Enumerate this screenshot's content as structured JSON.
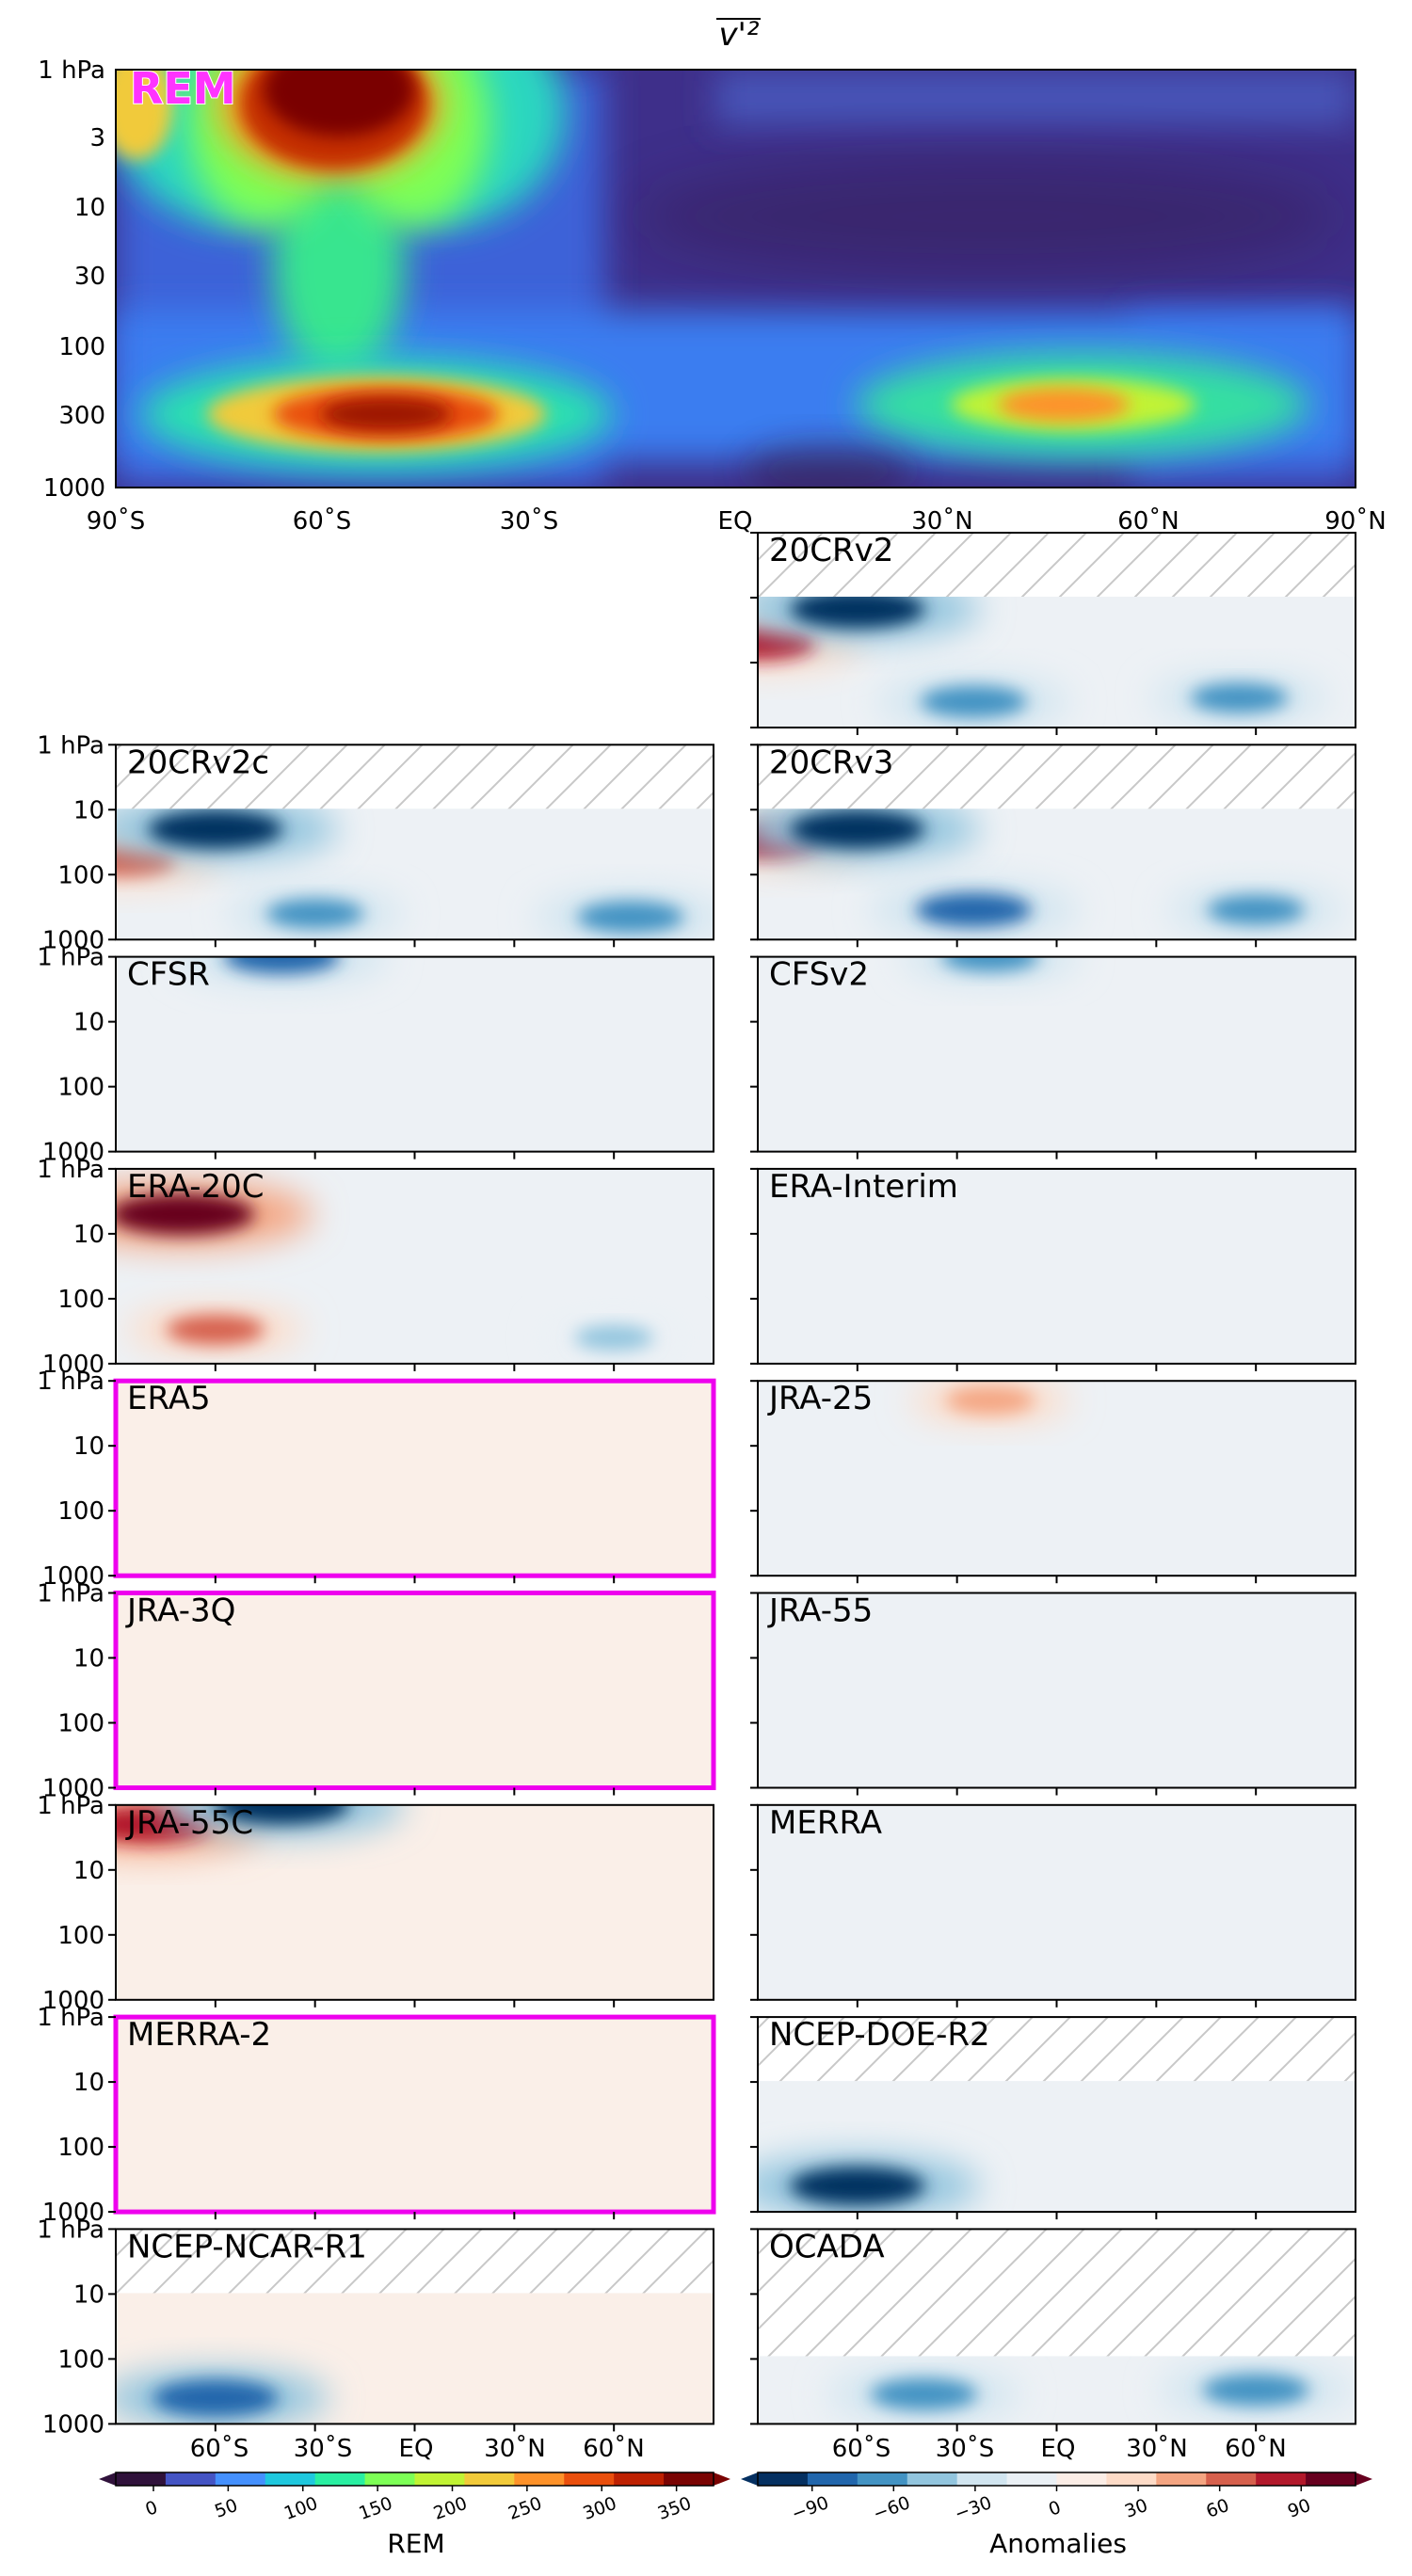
{
  "figure": {
    "title": "v'²",
    "colorbars": {
      "rem": {
        "label": "REM",
        "ticks": [
          "0",
          "50",
          "100",
          "150",
          "200",
          "250",
          "300",
          "350"
        ],
        "colors": [
          "#30123b",
          "#4454c4",
          "#4490fe",
          "#1fc8de",
          "#29efa2",
          "#7dff56",
          "#c1f334",
          "#f1ca3a",
          "#fe922a",
          "#ea4f0d",
          "#be2102",
          "#7a0403"
        ]
      },
      "anom": {
        "label": "Anomalies",
        "ticks": [
          "−90",
          "−60",
          "−30",
          "0",
          "30",
          "60",
          "90"
        ],
        "colors": [
          "#053061",
          "#2166ac",
          "#4393c3",
          "#92c5de",
          "#d1e5f0",
          "#eaf0f5",
          "#fbede6",
          "#fddbc7",
          "#f4a582",
          "#d6604d",
          "#b2182b",
          "#67001f"
        ]
      }
    },
    "main_panel": {
      "label": "REM",
      "y_ticks": [
        "1 hPa",
        "3",
        "10",
        "30",
        "100",
        "300",
        "1000"
      ],
      "x_ticks": [
        "90˚S",
        "60˚S",
        "30˚S",
        "EQ",
        "30˚N",
        "60˚N",
        "90˚N"
      ]
    },
    "small_y_ticks": [
      "1 hPa",
      "10",
      "100",
      "1000"
    ],
    "bottom_x_ticks": [
      "60˚S",
      "30˚S",
      "EQ",
      "30˚N",
      "60˚N"
    ],
    "panels": [
      {
        "name": "20CRv2",
        "col": 1,
        "row": 0,
        "highlight": false,
        "hatch_top": true
      },
      {
        "name": "20CRv2c",
        "col": 0,
        "row": 1,
        "highlight": false,
        "hatch_top": true
      },
      {
        "name": "20CRv3",
        "col": 1,
        "row": 1,
        "highlight": false,
        "hatch_top": true
      },
      {
        "name": "CFSR",
        "col": 0,
        "row": 2,
        "highlight": false,
        "hatch_top": false
      },
      {
        "name": "CFSv2",
        "col": 1,
        "row": 2,
        "highlight": false,
        "hatch_top": false
      },
      {
        "name": "ERA-20C",
        "col": 0,
        "row": 3,
        "highlight": false,
        "hatch_top": false
      },
      {
        "name": "ERA-Interim",
        "col": 1,
        "row": 3,
        "highlight": false,
        "hatch_top": false
      },
      {
        "name": "ERA5",
        "col": 0,
        "row": 4,
        "highlight": true,
        "hatch_top": false
      },
      {
        "name": "JRA-25",
        "col": 1,
        "row": 4,
        "highlight": false,
        "hatch_top": false
      },
      {
        "name": "JRA-3Q",
        "col": 0,
        "row": 5,
        "highlight": true,
        "hatch_top": false
      },
      {
        "name": "JRA-55",
        "col": 1,
        "row": 5,
        "highlight": false,
        "hatch_top": false
      },
      {
        "name": "JRA-55C",
        "col": 0,
        "row": 6,
        "highlight": false,
        "hatch_top": false
      },
      {
        "name": "MERRA",
        "col": 1,
        "row": 6,
        "highlight": false,
        "hatch_top": false
      },
      {
        "name": "MERRA-2",
        "col": 0,
        "row": 7,
        "highlight": true,
        "hatch_top": false
      },
      {
        "name": "NCEP-DOE-R2",
        "col": 1,
        "row": 7,
        "highlight": false,
        "hatch_top": true
      },
      {
        "name": "NCEP-NCAR-R1",
        "col": 0,
        "row": 8,
        "highlight": false,
        "hatch_top": true
      },
      {
        "name": "OCADA",
        "col": 1,
        "row": 8,
        "highlight": false,
        "hatch_top": true
      }
    ]
  },
  "chart_data": {
    "type": "heatmap",
    "title": "v'²",
    "x_ticks": [
      "90˚S",
      "60˚S",
      "30˚S",
      "EQ",
      "30˚N",
      "60˚N",
      "90˚N"
    ],
    "y_ticks": [
      "1 hPa",
      "3",
      "10",
      "30",
      "100",
      "300",
      "1000"
    ],
    "x_range": [
      -90,
      90
    ],
    "y_range_hPa": [
      1000,
      1
    ],
    "y_scale": "log",
    "rem_colorbar_range": [
      0,
      400
    ],
    "anomaly_colorbar_range": [
      -110,
      110
    ],
    "rem_hotspots": [
      {
        "lat": -60,
        "p": 1,
        "value": 400
      },
      {
        "lat": -50,
        "p": 300,
        "value": 380
      },
      {
        "lat": 50,
        "p": 300,
        "value": 220
      },
      {
        "lat": -90,
        "p": 1,
        "value": 200
      }
    ],
    "anomaly_features": [
      {
        "panel": "20CRv2",
        "lat": -90,
        "p": 50,
        "value": 80
      },
      {
        "panel": "20CRv2",
        "lat": -60,
        "p": 15,
        "value": -100
      },
      {
        "panel": "20CRv2",
        "lat": -25,
        "p": 400,
        "value": -70
      },
      {
        "panel": "20CRv2",
        "lat": 55,
        "p": 350,
        "value": -60
      },
      {
        "panel": "20CRv2c",
        "lat": -88,
        "p": 60,
        "value": 70
      },
      {
        "panel": "20CRv2c",
        "lat": -60,
        "p": 20,
        "value": -100
      },
      {
        "panel": "20CRv2c",
        "lat": -30,
        "p": 400,
        "value": -60
      },
      {
        "panel": "20CRv2c",
        "lat": 65,
        "p": 450,
        "value": -70
      },
      {
        "panel": "20CRv3",
        "lat": -88,
        "p": 30,
        "value": 80
      },
      {
        "panel": "20CRv3",
        "lat": -60,
        "p": 20,
        "value": -100
      },
      {
        "panel": "20CRv3",
        "lat": -25,
        "p": 350,
        "value": -80
      },
      {
        "panel": "20CRv3",
        "lat": 60,
        "p": 350,
        "value": -60
      },
      {
        "panel": "CFSR",
        "lat": -40,
        "p": 1,
        "value": -80
      },
      {
        "panel": "CFSv2",
        "lat": -20,
        "p": 1,
        "value": -60
      },
      {
        "panel": "ERA-20C",
        "lat": -70,
        "p": 5,
        "value": 110
      },
      {
        "panel": "ERA-20C",
        "lat": -60,
        "p": 300,
        "value": 60
      },
      {
        "panel": "ERA-20C",
        "lat": 60,
        "p": 400,
        "value": -40
      },
      {
        "panel": "JRA-25",
        "lat": -20,
        "p": 2,
        "value": 50
      },
      {
        "panel": "JRA-55C",
        "lat": -80,
        "p": 2,
        "value": 90
      },
      {
        "panel": "JRA-55C",
        "lat": -40,
        "p": 1,
        "value": -100
      },
      {
        "panel": "NCEP-DOE-R2",
        "lat": -60,
        "p": 400,
        "value": -100
      },
      {
        "panel": "NCEP-NCAR-R1",
        "lat": -60,
        "p": 400,
        "value": -90
      },
      {
        "panel": "OCADA",
        "lat": -40,
        "p": 350,
        "value": -70
      },
      {
        "panel": "OCADA",
        "lat": 60,
        "p": 300,
        "value": -70
      }
    ]
  }
}
